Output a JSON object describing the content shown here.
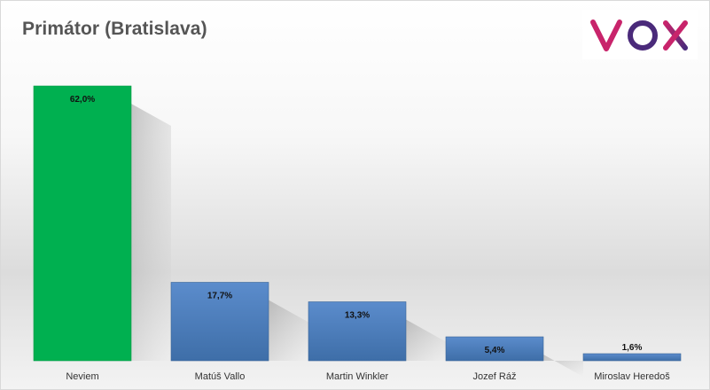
{
  "title": "Primátor (Bratislava)",
  "logo": {
    "text": "VOX",
    "colors": [
      "#c8246b",
      "#4a2a7a",
      "#c8246b"
    ]
  },
  "chart_data": {
    "type": "bar",
    "title": "Primátor (Bratislava)",
    "categories": [
      "Neviem",
      "Matúš Vallo",
      "Martin Winkler",
      "Jozef Ráž",
      "Miroslav Heredoš"
    ],
    "values": [
      62.0,
      17.7,
      13.3,
      5.4,
      1.6
    ],
    "value_labels": [
      "62,0%",
      "17,7%",
      "13,3%",
      "5,4%",
      "1,6%"
    ],
    "bar_colors": [
      "#00b050",
      "#4f81bd",
      "#4f81bd",
      "#4f81bd",
      "#4f81bd"
    ],
    "xlabel": "",
    "ylabel": "",
    "ylim": [
      0,
      62.0
    ],
    "grid": false,
    "legend": "none"
  }
}
